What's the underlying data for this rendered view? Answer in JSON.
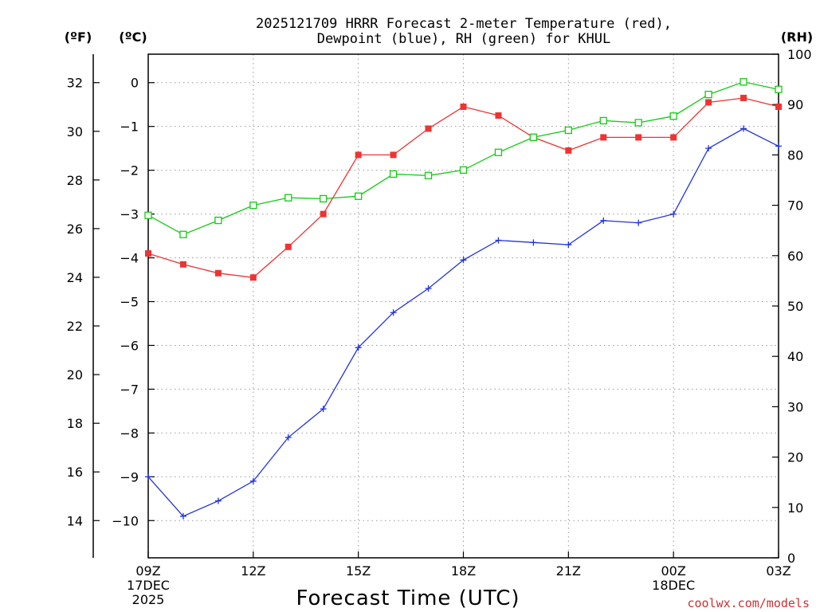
{
  "title_line1": "2025121709 HRRR Forecast 2-meter Temperature (red),",
  "title_line2": "Dewpoint (blue), RH (green) for KHUL",
  "units": {
    "f": "(ºF)",
    "c": "(ºC)",
    "rh": "(RH)"
  },
  "xlabel": "Forecast Time (UTC)",
  "credit": "coolwx.com/models",
  "colors": {
    "temperature": "#ee3333",
    "dewpoint": "#2233dd",
    "rh": "#11cc11",
    "grid": "#999999"
  },
  "chart_data": {
    "type": "line",
    "title": "2025121709 HRRR Forecast 2-meter Temperature (red), Dewpoint (blue), RH (green) for KHUL",
    "xlabel": "Forecast Time (UTC)",
    "x_hours": [
      0,
      1,
      2,
      3,
      4,
      5,
      6,
      7,
      8,
      9,
      10,
      11,
      12,
      13,
      14,
      15,
      16,
      17,
      18
    ],
    "x_ticks": [
      {
        "hour": 0,
        "lines": [
          "09Z",
          "17DEC",
          "2025"
        ]
      },
      {
        "hour": 3,
        "lines": [
          "12Z"
        ]
      },
      {
        "hour": 6,
        "lines": [
          "15Z"
        ]
      },
      {
        "hour": 9,
        "lines": [
          "18Z"
        ]
      },
      {
        "hour": 12,
        "lines": [
          "21Z"
        ]
      },
      {
        "hour": 15,
        "lines": [
          "00Z",
          "18DEC"
        ]
      },
      {
        "hour": 18,
        "lines": [
          "03Z"
        ]
      }
    ],
    "xlim": [
      0,
      18
    ],
    "y_celsius": {
      "lim": [
        -10.85,
        0.65
      ],
      "ticks": [
        0,
        -1,
        -2,
        -3,
        -4,
        -5,
        -6,
        -7,
        -8,
        -9,
        -10
      ],
      "tick_labels": [
        "0",
        "−1",
        "−2",
        "−3",
        "−4",
        "−5",
        "−6",
        "−7",
        "−8",
        "−9",
        "−10"
      ]
    },
    "y_fahrenheit": {
      "ticks": [
        32,
        30,
        28,
        26,
        24,
        22,
        20,
        18,
        16,
        14
      ],
      "tick_labels": [
        "32",
        "30",
        "28",
        "26",
        "24",
        "22",
        "20",
        "18",
        "16",
        "14"
      ]
    },
    "y_rh": {
      "lim": [
        0,
        100
      ],
      "ticks": [
        0,
        10,
        20,
        30,
        40,
        50,
        60,
        70,
        80,
        90,
        100
      ],
      "tick_labels": [
        "0",
        "10",
        "20",
        "30",
        "40",
        "50",
        "60",
        "70",
        "80",
        "90",
        "100"
      ]
    },
    "series": [
      {
        "name": "Temperature",
        "units": "C",
        "marker": "filled-square",
        "color": "#ee3333",
        "values": [
          -3.9,
          -4.15,
          -4.35,
          -4.45,
          -3.75,
          -3.0,
          -1.65,
          -1.65,
          -1.05,
          -0.55,
          -0.75,
          -1.25,
          -1.55,
          -1.25,
          -1.25,
          -1.25,
          -0.45,
          -0.35,
          -0.55
        ]
      },
      {
        "name": "Dewpoint",
        "units": "C",
        "marker": "plus",
        "color": "#2233dd",
        "values": [
          -9.0,
          -9.9,
          -9.55,
          -9.1,
          -8.1,
          -7.45,
          -6.05,
          -5.25,
          -4.7,
          -4.05,
          -3.6,
          -3.65,
          -3.7,
          -3.15,
          -3.2,
          -3.0,
          -1.5,
          -1.05,
          -1.45
        ]
      },
      {
        "name": "RH",
        "units": "%",
        "marker": "open-square",
        "color": "#11cc11",
        "values": [
          68,
          64.2,
          67,
          70,
          71.5,
          71.3,
          71.8,
          76.2,
          75.9,
          77,
          80.5,
          83.5,
          84.9,
          86.8,
          86.4,
          87.7,
          92,
          94.5,
          93
        ]
      }
    ]
  }
}
